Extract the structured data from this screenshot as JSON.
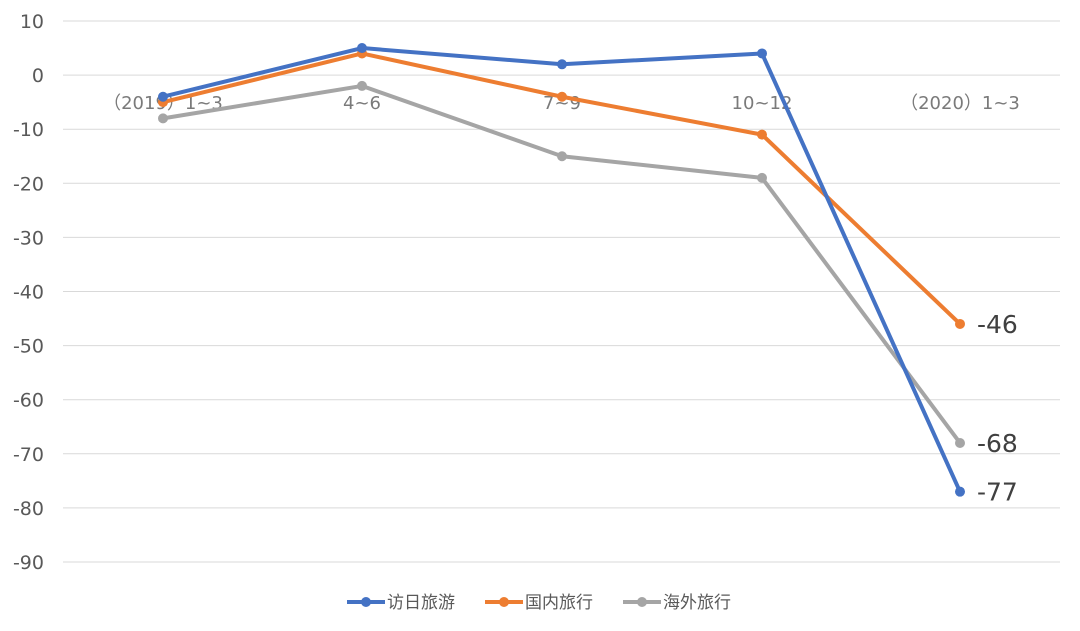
{
  "chart_data": {
    "type": "line",
    "categories": [
      "（2019）1~3",
      "4~6",
      "7~9",
      "10~12",
      "（2020）1~3"
    ],
    "ylim": [
      -90,
      10
    ],
    "yticks": [
      "10",
      "0",
      "-10",
      "-20",
      "-30",
      "-40",
      "-50",
      "-60",
      "-70",
      "-80",
      "-90"
    ],
    "grid": true,
    "legend_position": "bottom",
    "series": [
      {
        "name": "访日旅游",
        "color": "#4472C4",
        "values": [
          -4,
          5,
          2,
          4,
          -77
        ],
        "last_label": "-77"
      },
      {
        "name": "国内旅行",
        "color": "#ED7D31",
        "values": [
          -5,
          4,
          -4,
          -11,
          -46
        ],
        "last_label": "-46"
      },
      {
        "name": "海外旅行",
        "color": "#A5A5A5",
        "values": [
          -8,
          -2,
          -15,
          -19,
          -68
        ],
        "last_label": "-68"
      }
    ]
  }
}
